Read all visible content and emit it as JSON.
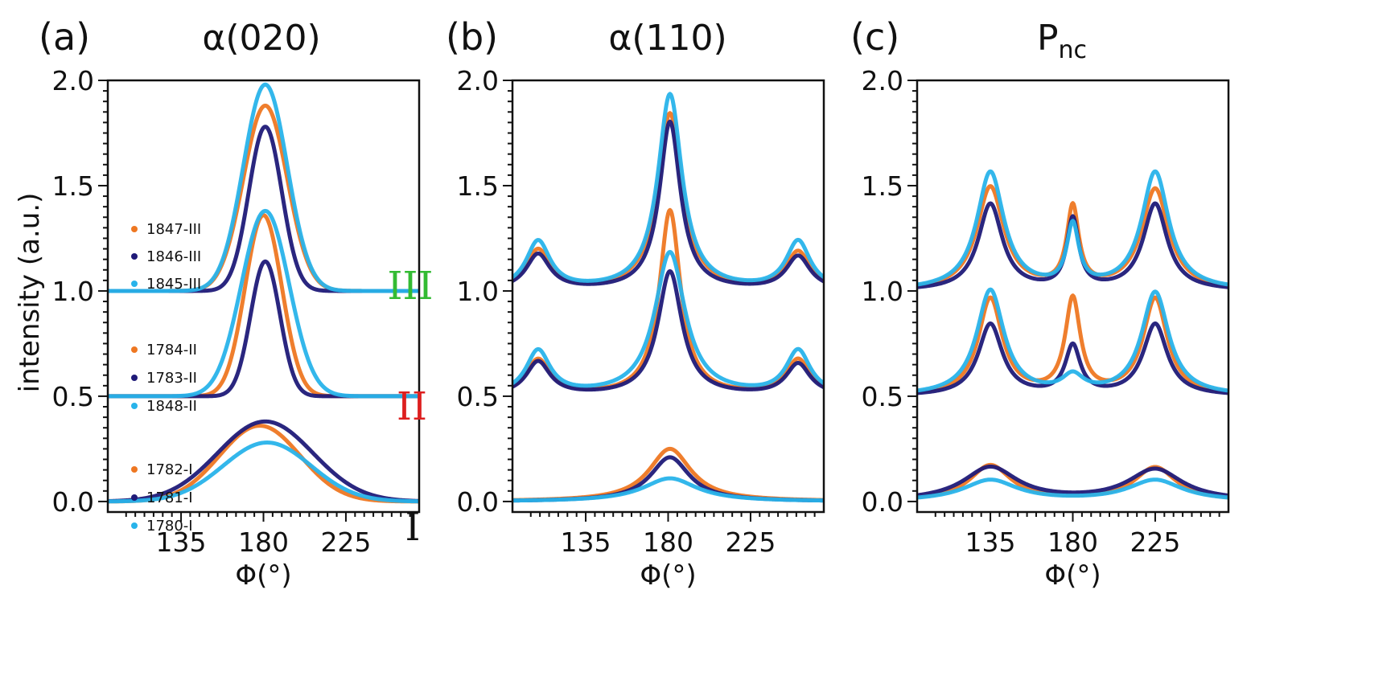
{
  "figure": {
    "ylabel": "intensity (a.u.)",
    "xlabel": "Φ(°)"
  },
  "colors": {
    "orange": "#ee7722",
    "navy": "#1f1a78",
    "cyan": "#28b3ea",
    "III": "#33bb33",
    "II": "#dd1f1f",
    "I": "#111111"
  },
  "legend": {
    "III": [
      "1847-III",
      "1846-III",
      "1845-III"
    ],
    "II": [
      "1784-II",
      "1783-II",
      "1848-II"
    ],
    "I": [
      "1782-I",
      "1781-I",
      "1780-I"
    ]
  },
  "group_labels": {
    "III": "III",
    "II": "II",
    "I": "I"
  },
  "chart_data": [
    {
      "panel": "(a)",
      "type": "line",
      "title_main": "α(020)",
      "title_sub": "",
      "xlabel": "Φ(°)",
      "ylabel": "intensity (a.u.)",
      "xlim": [
        95,
        265
      ],
      "ylim": [
        -0.05,
        2.0
      ],
      "xticks": [
        135,
        180,
        225
      ],
      "yticks": [
        0.0,
        0.5,
        1.0,
        1.5,
        2.0
      ],
      "peak_shape": "gaussian",
      "series": [
        {
          "name": "1847-III",
          "color": "orange",
          "offset": 1.0,
          "peaks": [
            [
              181,
              0.88,
              12
            ]
          ]
        },
        {
          "name": "1846-III",
          "color": "navy",
          "offset": 1.0,
          "peaks": [
            [
              181,
              0.78,
              9
            ]
          ]
        },
        {
          "name": "1845-III",
          "color": "cyan",
          "offset": 1.0,
          "peaks": [
            [
              181,
              0.98,
              12
            ]
          ]
        },
        {
          "name": "1784-II",
          "color": "orange",
          "offset": 0.5,
          "peaks": [
            [
              180,
              0.86,
              10
            ]
          ]
        },
        {
          "name": "1783-II",
          "color": "navy",
          "offset": 0.5,
          "peaks": [
            [
              181,
              0.64,
              8
            ]
          ]
        },
        {
          "name": "1848-II",
          "color": "cyan",
          "offset": 0.5,
          "peaks": [
            [
              181,
              0.88,
              13
            ]
          ]
        },
        {
          "name": "1782-I",
          "color": "orange",
          "offset": 0.0,
          "peaks": [
            [
              178,
              0.36,
              22
            ]
          ]
        },
        {
          "name": "1781-I",
          "color": "navy",
          "offset": 0.0,
          "peaks": [
            [
              181,
              0.38,
              26
            ]
          ]
        },
        {
          "name": "1780-I",
          "color": "cyan",
          "offset": 0.0,
          "peaks": [
            [
              182,
              0.28,
              24
            ]
          ]
        }
      ]
    },
    {
      "panel": "(b)",
      "type": "line",
      "title_main": "α(110)",
      "title_sub": "",
      "xlabel": "Φ(°)",
      "ylabel": "",
      "xlim": [
        95,
        265
      ],
      "ylim": [
        -0.05,
        2.0
      ],
      "xticks": [
        135,
        180,
        225
      ],
      "yticks": [
        0.0,
        0.5,
        1.0,
        1.5,
        2.0
      ],
      "peak_shape": "lorentzian",
      "series": [
        {
          "name": "1847-III",
          "color": "orange",
          "offset": 1.0,
          "peaks": [
            [
              109,
              0.19,
              8
            ],
            [
              181,
              0.84,
              8
            ],
            [
              251,
              0.18,
              8
            ]
          ]
        },
        {
          "name": "1846-III",
          "color": "navy",
          "offset": 1.0,
          "peaks": [
            [
              109,
              0.17,
              8
            ],
            [
              181,
              0.8,
              7
            ],
            [
              251,
              0.16,
              8
            ]
          ]
        },
        {
          "name": "1845-III",
          "color": "cyan",
          "offset": 1.0,
          "peaks": [
            [
              109,
              0.23,
              8
            ],
            [
              181,
              0.93,
              8
            ],
            [
              251,
              0.23,
              8
            ]
          ]
        },
        {
          "name": "1784-II",
          "color": "orange",
          "offset": 0.5,
          "peaks": [
            [
              109,
              0.17,
              8
            ],
            [
              181,
              0.88,
              7
            ],
            [
              251,
              0.17,
              8
            ]
          ]
        },
        {
          "name": "1783-II",
          "color": "navy",
          "offset": 0.5,
          "peaks": [
            [
              109,
              0.16,
              8
            ],
            [
              181,
              0.59,
              8
            ],
            [
              251,
              0.15,
              8
            ]
          ]
        },
        {
          "name": "1848-II",
          "color": "cyan",
          "offset": 0.5,
          "peaks": [
            [
              109,
              0.21,
              8
            ],
            [
              181,
              0.68,
              10
            ],
            [
              251,
              0.21,
              8
            ]
          ]
        },
        {
          "name": "1782-I",
          "color": "orange",
          "offset": 0.0,
          "peaks": [
            [
              181,
              0.25,
              14
            ]
          ]
        },
        {
          "name": "1781-I",
          "color": "navy",
          "offset": 0.0,
          "peaks": [
            [
              181,
              0.21,
              13
            ]
          ]
        },
        {
          "name": "1780-I",
          "color": "cyan",
          "offset": 0.0,
          "peaks": [
            [
              181,
              0.11,
              18
            ]
          ]
        }
      ]
    },
    {
      "panel": "(c)",
      "type": "line",
      "title_main": "P",
      "title_sub": "nc",
      "xlabel": "Φ(°)",
      "ylabel": "",
      "xlim": [
        95,
        265
      ],
      "ylim": [
        -0.05,
        2.0
      ],
      "xticks": [
        135,
        180,
        225
      ],
      "yticks": [
        0.0,
        0.5,
        1.0,
        1.5,
        2.0
      ],
      "peak_shape": "lorentzian",
      "series": [
        {
          "name": "1847-III",
          "color": "orange",
          "offset": 1.0,
          "peaks": [
            [
              135,
              0.49,
              9
            ],
            [
              180,
              0.38,
              4
            ],
            [
              225,
              0.48,
              9
            ]
          ]
        },
        {
          "name": "1846-III",
          "color": "navy",
          "offset": 1.0,
          "peaks": [
            [
              135,
              0.41,
              8
            ],
            [
              180,
              0.33,
              4
            ],
            [
              225,
              0.41,
              8
            ]
          ]
        },
        {
          "name": "1845-III",
          "color": "cyan",
          "offset": 1.0,
          "peaks": [
            [
              135,
              0.56,
              9
            ],
            [
              180,
              0.29,
              4
            ],
            [
              225,
              0.56,
              9
            ]
          ]
        },
        {
          "name": "1784-II",
          "color": "orange",
          "offset": 0.5,
          "peaks": [
            [
              135,
              0.46,
              8
            ],
            [
              180,
              0.45,
              5
            ],
            [
              225,
              0.46,
              8
            ]
          ]
        },
        {
          "name": "1783-II",
          "color": "navy",
          "offset": 0.5,
          "peaks": [
            [
              135,
              0.34,
              8
            ],
            [
              180,
              0.23,
              5
            ],
            [
              225,
              0.34,
              8
            ]
          ]
        },
        {
          "name": "1848-II",
          "color": "cyan",
          "offset": 0.5,
          "peaks": [
            [
              135,
              0.5,
              9
            ],
            [
              180,
              0.08,
              7
            ],
            [
              225,
              0.49,
              9
            ]
          ]
        },
        {
          "name": "1782-I",
          "color": "orange",
          "offset": 0.0,
          "peaks": [
            [
              135,
              0.17,
              14
            ],
            [
              225,
              0.16,
              14
            ]
          ]
        },
        {
          "name": "1781-I",
          "color": "navy",
          "offset": 0.0,
          "peaks": [
            [
              135,
              0.16,
              18
            ],
            [
              225,
              0.15,
              18
            ]
          ]
        },
        {
          "name": "1780-I",
          "color": "cyan",
          "offset": 0.0,
          "peaks": [
            [
              135,
              0.1,
              18
            ],
            [
              225,
              0.1,
              18
            ]
          ]
        }
      ]
    }
  ]
}
